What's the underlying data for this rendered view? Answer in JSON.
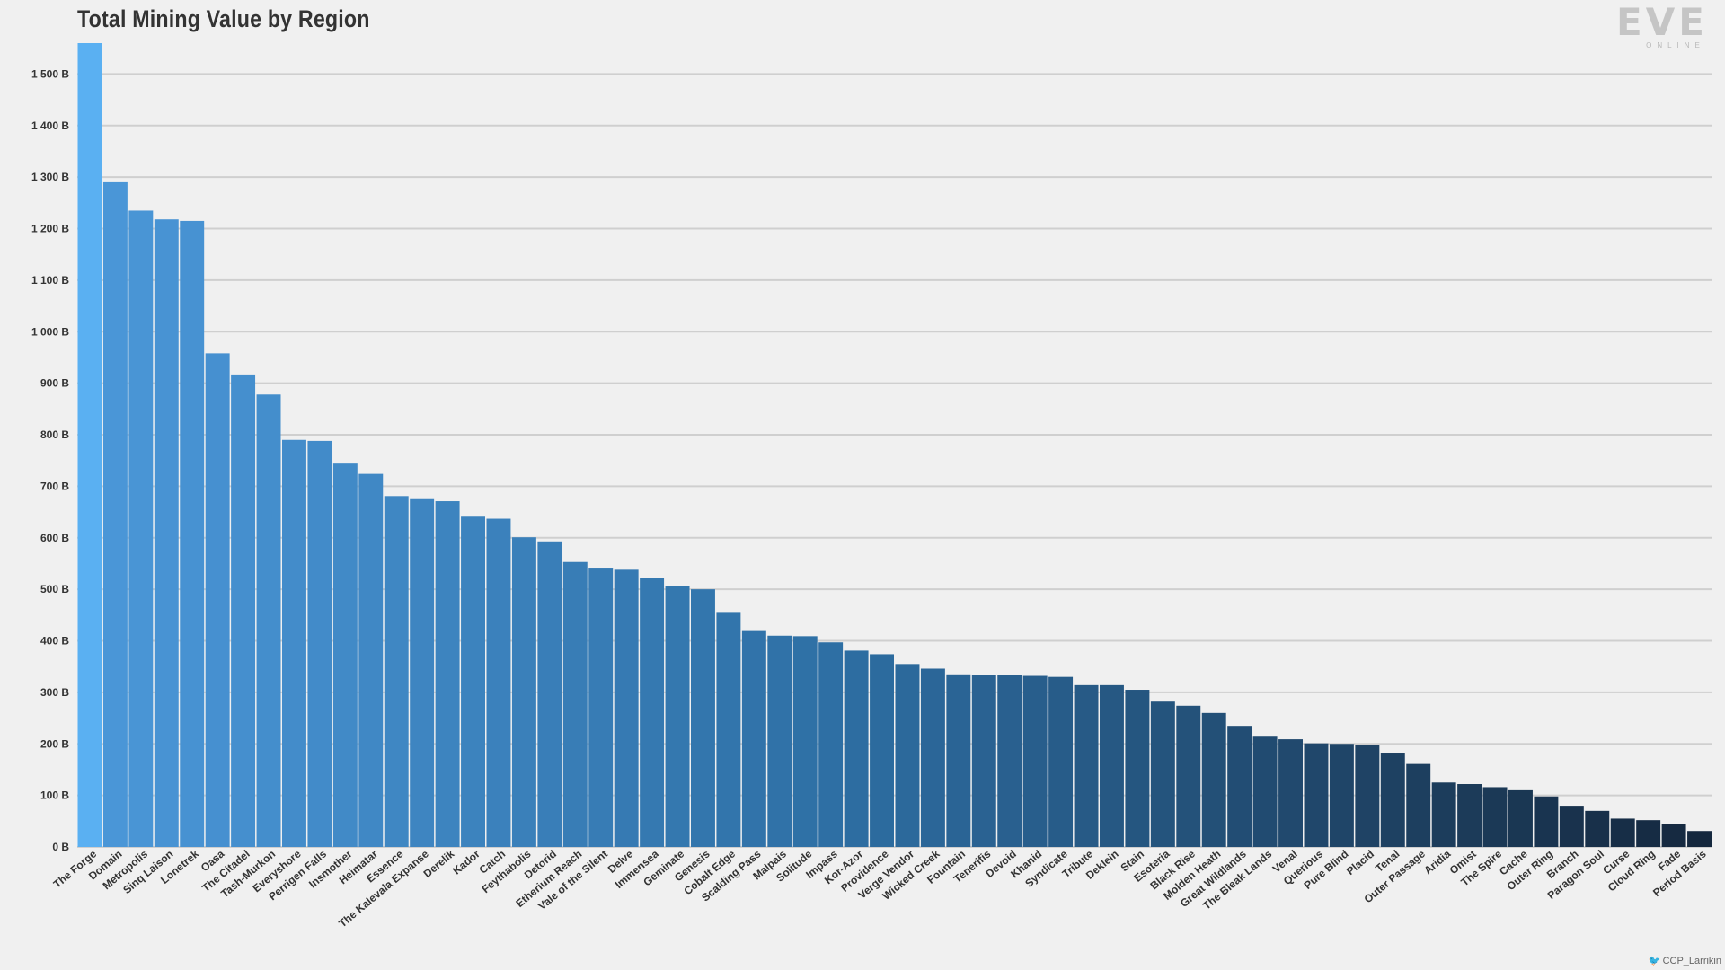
{
  "logo": {
    "word": "EVE",
    "sub": "ONLINE"
  },
  "credit": "CCP_Larrikin",
  "chart_data": {
    "type": "bar",
    "title": "Total Mining Value by Region",
    "xlabel": "",
    "ylabel": "",
    "ylim": [
      0,
      1560
    ],
    "grid": true,
    "y_unit_suffix": " B",
    "yticks": [
      0,
      100,
      200,
      300,
      400,
      500,
      600,
      700,
      800,
      900,
      1000,
      1100,
      1200,
      1300,
      1400,
      1500
    ],
    "ytick_labels": [
      "0 B",
      "100 B",
      "200 B",
      "300 B",
      "400 B",
      "500 B",
      "600 B",
      "700 B",
      "800 B",
      "900 B",
      "1 000 B",
      "1 100 B",
      "1 200 B",
      "1 300 B",
      "1 400 B",
      "1 500 B"
    ],
    "categories": [
      "The Forge",
      "Domain",
      "Metropolis",
      "Sinq Laison",
      "Lonetrek",
      "Oasa",
      "The Citadel",
      "Tash-Murkon",
      "Everyshore",
      "Perrigen Falls",
      "Insmother",
      "Heimatar",
      "Essence",
      "The Kalevala Expanse",
      "Derelik",
      "Kador",
      "Catch",
      "Feythabolis",
      "Detorid",
      "Etherium Reach",
      "Vale of the Silent",
      "Delve",
      "Immensea",
      "Geminate",
      "Genesis",
      "Cobalt Edge",
      "Scalding Pass",
      "Malpais",
      "Solitude",
      "Impass",
      "Kor-Azor",
      "Providence",
      "Verge Vendor",
      "Wicked Creek",
      "Fountain",
      "Tenerifis",
      "Devoid",
      "Khanid",
      "Syndicate",
      "Tribute",
      "Deklein",
      "Stain",
      "Esoteria",
      "Black Rise",
      "Molden Heath",
      "Great Wildlands",
      "The Bleak Lands",
      "Venal",
      "Querious",
      "Pure Blind",
      "Placid",
      "Tenal",
      "Outer Passage",
      "Aridia",
      "Omist",
      "The Spire",
      "Cache",
      "Outer Ring",
      "Branch",
      "Paragon Soul",
      "Curse",
      "Cloud Ring",
      "Fade",
      "Period Basis"
    ],
    "values": [
      1560,
      1290,
      1235,
      1218,
      1215,
      958,
      917,
      878,
      790,
      788,
      744,
      724,
      681,
      675,
      671,
      641,
      637,
      601,
      593,
      553,
      542,
      538,
      522,
      506,
      500,
      456,
      419,
      410,
      409,
      397,
      381,
      374,
      355,
      346,
      335,
      333,
      333,
      332,
      330,
      314,
      314,
      305,
      282,
      274,
      260,
      235,
      214,
      209,
      201,
      200,
      197,
      183,
      161,
      125,
      122,
      116,
      110,
      98,
      80,
      70,
      55,
      52,
      44,
      31
    ],
    "bar_color_start": "#5ab0f2",
    "bar_color_mid": "#2e6fa4",
    "bar_color_end": "#15283e"
  }
}
